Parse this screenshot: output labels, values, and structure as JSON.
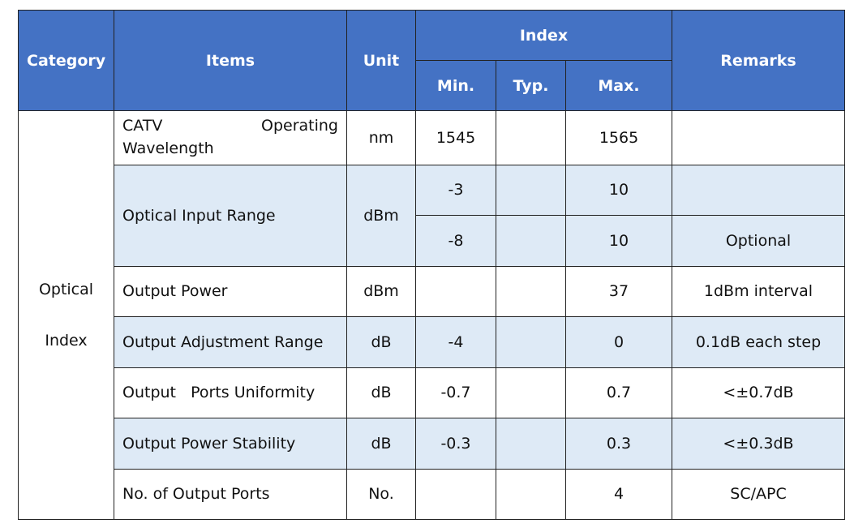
{
  "header": {
    "category": "Category",
    "items": "Items",
    "unit": "Unit",
    "index": "Index",
    "min": "Min.",
    "typ": "Typ.",
    "max": "Max.",
    "remarks": "Remarks"
  },
  "category": {
    "lines": [
      "Optical",
      "Index"
    ]
  },
  "rows": [
    {
      "item": "CATV Operating Wavelength",
      "unit": "nm",
      "levels": [
        {
          "min": "1545",
          "max": "1565"
        }
      ]
    },
    {
      "item": "Optical Input Range",
      "unit": "dBm",
      "levels": [
        {
          "min": "-3",
          "max": "10"
        },
        {
          "min": "-8",
          "max": "10",
          "remarks": "Optional"
        }
      ]
    },
    {
      "item": "Output Power",
      "unit": "dBm",
      "levels": [
        {
          "max": "37",
          "remarks": "1dBm interval"
        }
      ]
    },
    {
      "item": "Output Adjustment Range",
      "unit": "dB",
      "levels": [
        {
          "min": "-4",
          "max": "0",
          "remarks": "0.1dB each step"
        }
      ]
    },
    {
      "item": "Output   Ports Uniformity",
      "unit": "dB",
      "levels": [
        {
          "min": "-0.7",
          "max": "0.7",
          "remarks": "<±0.7dB"
        }
      ]
    },
    {
      "item": "Output Power Stability",
      "unit": "dB",
      "levels": [
        {
          "min": "-0.3",
          "max": "0.3",
          "remarks": "<±0.3dB"
        }
      ]
    },
    {
      "item": "No. of Output Ports",
      "unit": "No.",
      "levels": [
        {
          "max": "4",
          "remarks": "SC/APC"
        }
      ]
    }
  ]
}
